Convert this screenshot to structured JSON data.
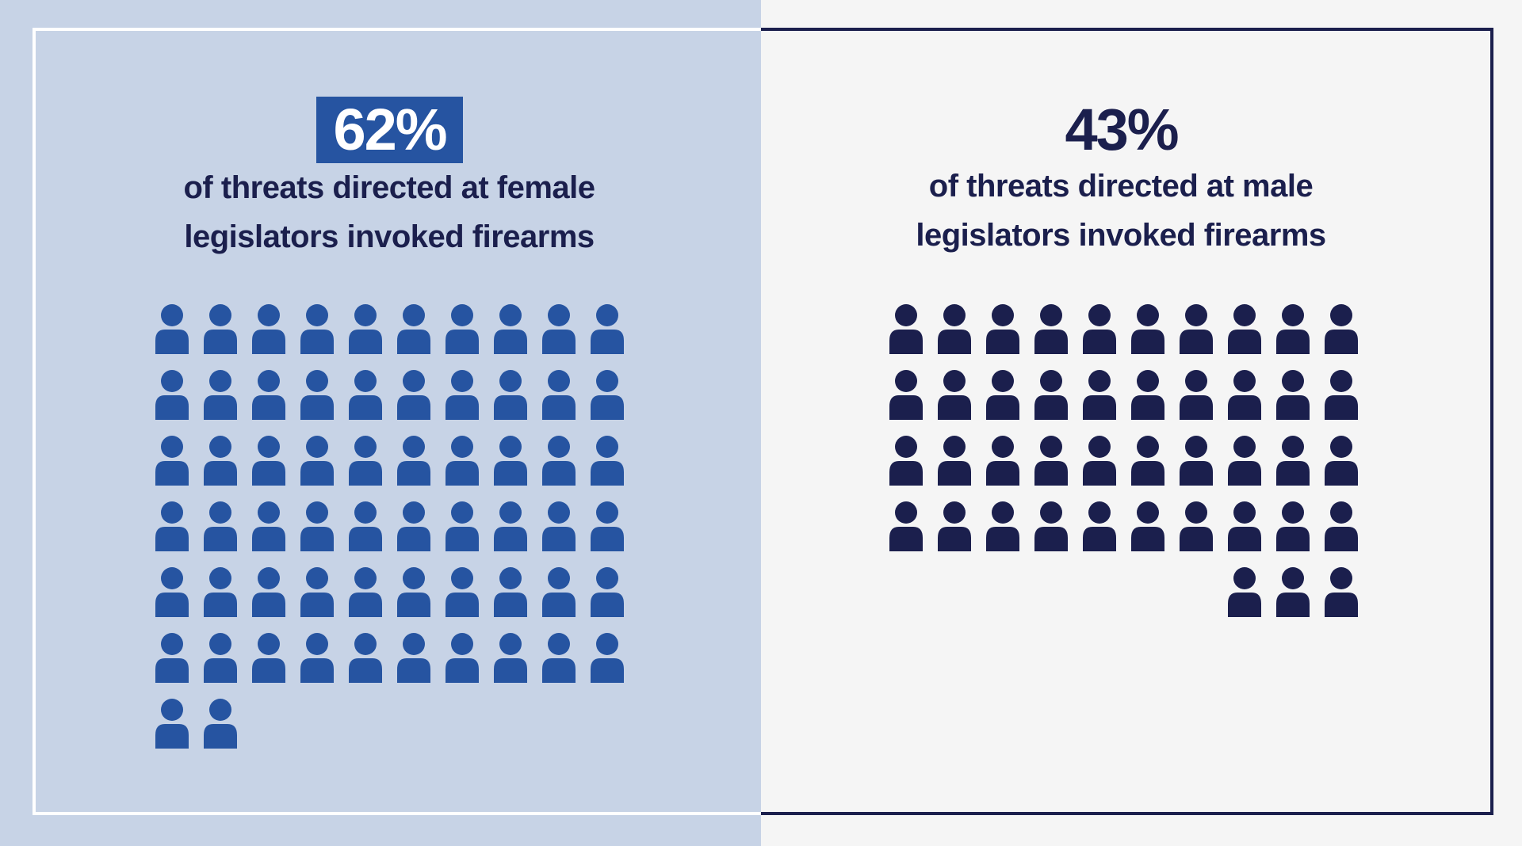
{
  "colors": {
    "left_background": "#c7d3e6",
    "right_background": "#f5f5f5",
    "left_frame": "#ffffff",
    "right_frame": "#1b1f4d",
    "female_accent": "#2654a1",
    "male_accent": "#1b1f4d",
    "left_percent_text": "#ffffff",
    "text_dark": "#1b1f4d"
  },
  "panels": {
    "female": {
      "percent_label": "62%",
      "caption_line1": "of threats directed at female",
      "caption_line2": "legislators invoked firearms"
    },
    "male": {
      "percent_label": "43%",
      "caption_line1": "of threats directed at male",
      "caption_line2": "legislators invoked firearms"
    }
  },
  "chart_data": [
    {
      "type": "pictograph",
      "icon": "person-icon",
      "value_percent": 62,
      "icon_count": 62,
      "per_row": 10,
      "color": "#2654a1",
      "title": "62%",
      "subtitle": "of threats directed at female legislators invoked firearms"
    },
    {
      "type": "pictograph",
      "icon": "person-icon",
      "value_percent": 43,
      "icon_count": 43,
      "per_row": 10,
      "color": "#1b1f4d",
      "title": "43%",
      "subtitle": "of threats directed at male legislators invoked firearms"
    }
  ]
}
